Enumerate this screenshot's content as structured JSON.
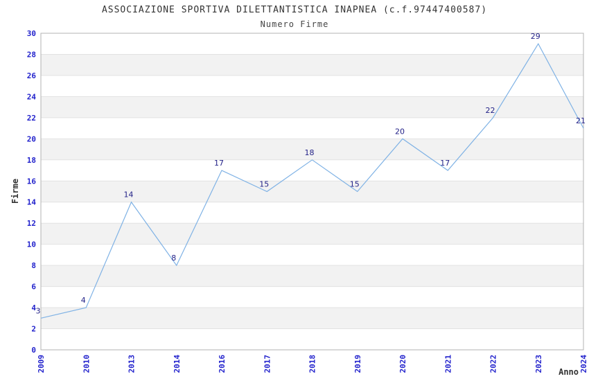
{
  "chart_data": {
    "type": "line",
    "title": "ASSOCIAZIONE SPORTIVA DILETTANTISTICA INAPNEA (c.f.97447400587)",
    "subtitle": "Numero Firme",
    "xlabel": "Anno",
    "ylabel": "Firme",
    "categories": [
      "2009",
      "2010",
      "2013",
      "2014",
      "2016",
      "2017",
      "2018",
      "2019",
      "2020",
      "2021",
      "2022",
      "2023",
      "2024"
    ],
    "values": [
      3,
      4,
      14,
      8,
      17,
      15,
      18,
      15,
      20,
      17,
      22,
      29,
      21
    ],
    "ylim": [
      0,
      30
    ],
    "yticks": [
      0,
      2,
      4,
      6,
      8,
      10,
      12,
      14,
      16,
      18,
      20,
      22,
      24,
      26,
      28,
      30
    ],
    "grid": true,
    "legend": "none",
    "background_bands": "alternating horizontal stripes every 2 units, gray on 2-4, 6-8, 10-12, 14-16, 18-20, 22-24, 26-28",
    "point_labels_shown": true,
    "x_tick_rotation_deg": 90,
    "colors": {
      "line": "#7fb2e5",
      "tick_label": "#2222cc",
      "value_label": "#232288",
      "band_fill": "#f2f2f2",
      "gridline": "#e2e2e2",
      "plot_border": "#b3b3b3",
      "title": "#333333",
      "axis_label": "#333333",
      "plot_background": "#ffffff"
    }
  }
}
